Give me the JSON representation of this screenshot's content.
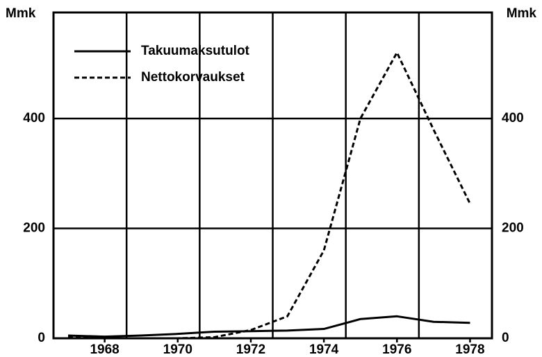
{
  "chart_data": {
    "type": "line",
    "ylabel": "Mmk",
    "y2label": "Mmk",
    "x": [
      1967,
      1968,
      1969,
      1970,
      1971,
      1972,
      1973,
      1974,
      1975,
      1976,
      1977,
      1978
    ],
    "series": [
      {
        "name": "Takuumaksutulot",
        "color": "#000000",
        "dash": "solid",
        "values": [
          5,
          3,
          5,
          8,
          12,
          13,
          14,
          17,
          35,
          40,
          30,
          28
        ]
      },
      {
        "name": "Nettokorvaukset",
        "color": "#000000",
        "dash": "dashed",
        "values": [
          2,
          0,
          0,
          0,
          2,
          15,
          40,
          160,
          400,
          520,
          380,
          245
        ]
      }
    ],
    "xlim": [
      1966.6,
      1978.6
    ],
    "xticks": [
      1968,
      1970,
      1972,
      1974,
      1976,
      1978
    ],
    "xgrid": [
      1968.6,
      1970.6,
      1972.6,
      1974.6,
      1976.6
    ],
    "ylim": [
      0,
      593
    ],
    "yticks": [
      0,
      200,
      400
    ],
    "y2lim": [
      0,
      593
    ],
    "y2ticks": [
      0,
      200,
      400
    ],
    "grid": true,
    "legend": "upper left"
  }
}
